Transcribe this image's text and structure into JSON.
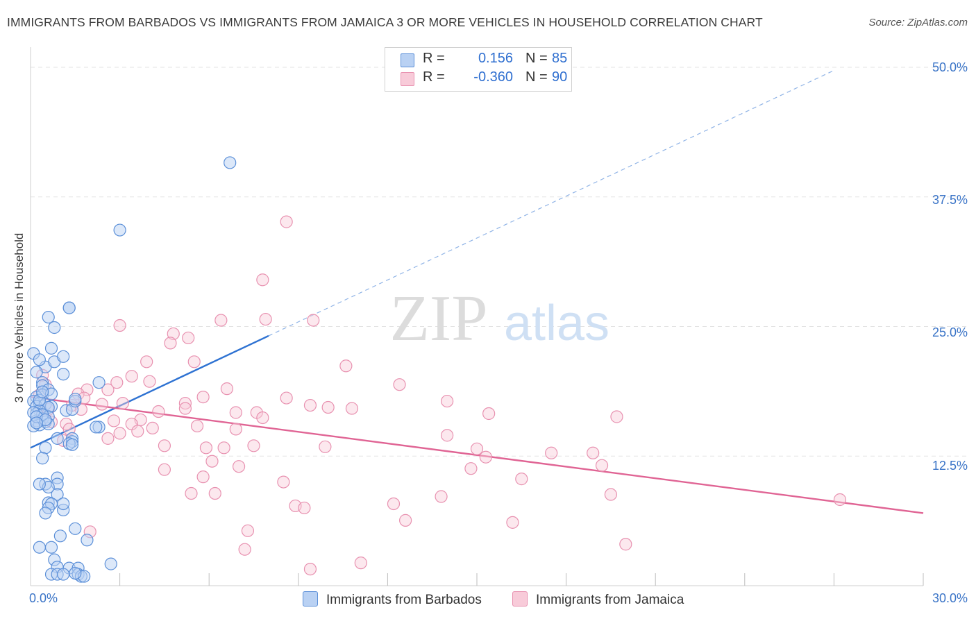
{
  "title": "IMMIGRANTS FROM BARBADOS VS IMMIGRANTS FROM JAMAICA 3 OR MORE VEHICLES IN HOUSEHOLD CORRELATION CHART",
  "source": "Source: ZipAtlas.com",
  "watermark": {
    "zip": "ZIP",
    "atlas": "atlas"
  },
  "legend": {
    "r_label": "R =",
    "n_label": "N =",
    "rows": [
      {
        "r": "0.156",
        "n": "85"
      },
      {
        "r": "-0.360",
        "n": "90"
      }
    ]
  },
  "colors": {
    "barbados_stroke": "#5b8fd8",
    "barbados_fill": "#b9d1f3",
    "barbados_line": "#2e72d2",
    "jamaica_stroke": "#e891b0",
    "jamaica_fill": "#f8cbd9",
    "jamaica_line": "#e06494",
    "grid": "#e3e3e3",
    "tick_text": "#3a74c7"
  },
  "chart_data": {
    "type": "scatter",
    "title": "IMMIGRANTS FROM BARBADOS VS IMMIGRANTS FROM JAMAICA 3 OR MORE VEHICLES IN HOUSEHOLD CORRELATION CHART",
    "xlabel": "",
    "ylabel": "3 or more Vehicles in Household",
    "xlim": [
      0,
      30
    ],
    "ylim": [
      0,
      50
    ],
    "x_tick_labels": [
      {
        "value": 0,
        "label": "0.0%"
      },
      {
        "value": 30,
        "label": "30.0%"
      }
    ],
    "y_tick_labels": [
      {
        "value": 12.5,
        "label": "12.5%"
      },
      {
        "value": 25,
        "label": "25.0%"
      },
      {
        "value": 37.5,
        "label": "37.5%"
      },
      {
        "value": 50,
        "label": "50.0%"
      }
    ],
    "x_minor_ticks": [
      3,
      6,
      9,
      12,
      15,
      18,
      21,
      24,
      27,
      30
    ],
    "grid": true,
    "series": [
      {
        "name": "Immigrants from Barbados",
        "r": 0.156,
        "n": 85,
        "trend": {
          "x0": 0,
          "y0": 13.3,
          "x1": 8,
          "y1": 24.1,
          "dashed_to_x": 27,
          "dashed_to_y": 49.7
        },
        "points": [
          [
            6.7,
            40.8
          ],
          [
            3.0,
            34.3
          ],
          [
            1.3,
            26.8
          ],
          [
            1.3,
            26.8
          ],
          [
            0.6,
            25.9
          ],
          [
            0.8,
            24.9
          ],
          [
            0.1,
            22.4
          ],
          [
            0.7,
            22.9
          ],
          [
            0.5,
            21.1
          ],
          [
            0.8,
            21.6
          ],
          [
            1.1,
            22.1
          ],
          [
            1.1,
            20.4
          ],
          [
            0.3,
            21.8
          ],
          [
            0.2,
            20.6
          ],
          [
            0.4,
            19.6
          ],
          [
            0.4,
            19.3
          ],
          [
            0.6,
            18.9
          ],
          [
            0.4,
            18.4
          ],
          [
            0.7,
            18.5
          ],
          [
            0.2,
            18.2
          ],
          [
            0.1,
            17.8
          ],
          [
            0.3,
            17.6
          ],
          [
            0.2,
            17.3
          ],
          [
            0.5,
            17.5
          ],
          [
            0.7,
            17.3
          ],
          [
            0.6,
            17.2
          ],
          [
            0.3,
            16.9
          ],
          [
            0.2,
            16.6
          ],
          [
            0.6,
            16.3
          ],
          [
            0.4,
            16.1
          ],
          [
            0.2,
            15.9
          ],
          [
            0.5,
            15.8
          ],
          [
            0.3,
            15.5
          ],
          [
            0.1,
            15.4
          ],
          [
            0.6,
            15.6
          ],
          [
            0.4,
            16.5
          ],
          [
            0.1,
            16.7
          ],
          [
            1.2,
            16.9
          ],
          [
            1.4,
            17.0
          ],
          [
            1.5,
            17.8
          ],
          [
            1.5,
            18.0
          ],
          [
            2.3,
            19.6
          ],
          [
            2.3,
            15.3
          ],
          [
            2.2,
            15.3
          ],
          [
            1.4,
            14.2
          ],
          [
            1.4,
            13.9
          ],
          [
            1.3,
            13.7
          ],
          [
            1.4,
            13.6
          ],
          [
            0.9,
            14.2
          ],
          [
            0.5,
            13.3
          ],
          [
            0.4,
            12.3
          ],
          [
            0.9,
            10.4
          ],
          [
            0.9,
            9.8
          ],
          [
            0.5,
            9.8
          ],
          [
            0.6,
            9.5
          ],
          [
            0.3,
            9.8
          ],
          [
            0.9,
            8.8
          ],
          [
            0.6,
            8.0
          ],
          [
            0.7,
            7.9
          ],
          [
            0.6,
            7.5
          ],
          [
            0.5,
            7.0
          ],
          [
            1.1,
            7.3
          ],
          [
            1.1,
            7.9
          ],
          [
            1.5,
            5.5
          ],
          [
            1.9,
            4.4
          ],
          [
            1.0,
            4.8
          ],
          [
            0.3,
            3.7
          ],
          [
            0.7,
            3.7
          ],
          [
            0.8,
            2.5
          ],
          [
            0.9,
            1.8
          ],
          [
            1.3,
            1.7
          ],
          [
            1.6,
            1.7
          ],
          [
            2.7,
            2.1
          ],
          [
            0.7,
            1.1
          ],
          [
            0.9,
            1.1
          ],
          [
            1.1,
            1.1
          ],
          [
            1.6,
            1.1
          ],
          [
            1.7,
            0.9
          ],
          [
            1.8,
            0.9
          ],
          [
            1.5,
            1.2
          ],
          [
            0.2,
            16.3
          ],
          [
            0.3,
            17.9
          ],
          [
            0.4,
            18.7
          ],
          [
            0.5,
            16.0
          ],
          [
            0.2,
            15.7
          ]
        ]
      },
      {
        "name": "Immigrants from Jamaica",
        "r": -0.36,
        "n": 90,
        "trend": {
          "x0": 0,
          "y0": 18.2,
          "x1": 30,
          "y1": 7.0
        },
        "points": [
          [
            8.6,
            35.1
          ],
          [
            7.8,
            29.5
          ],
          [
            3.0,
            25.1
          ],
          [
            6.4,
            25.6
          ],
          [
            7.9,
            25.7
          ],
          [
            9.5,
            25.6
          ],
          [
            4.8,
            24.3
          ],
          [
            5.3,
            23.9
          ],
          [
            4.7,
            23.4
          ],
          [
            10.6,
            21.2
          ],
          [
            12.4,
            19.4
          ],
          [
            5.5,
            21.6
          ],
          [
            3.9,
            21.6
          ],
          [
            3.4,
            20.2
          ],
          [
            4.0,
            19.7
          ],
          [
            2.9,
            19.6
          ],
          [
            2.6,
            18.9
          ],
          [
            1.9,
            18.9
          ],
          [
            1.6,
            18.5
          ],
          [
            1.8,
            18.1
          ],
          [
            1.4,
            17.4
          ],
          [
            1.7,
            17.0
          ],
          [
            2.4,
            17.5
          ],
          [
            3.1,
            17.6
          ],
          [
            5.2,
            17.6
          ],
          [
            5.8,
            18.2
          ],
          [
            6.6,
            19.0
          ],
          [
            8.6,
            18.1
          ],
          [
            9.4,
            17.4
          ],
          [
            10.0,
            17.2
          ],
          [
            10.8,
            17.1
          ],
          [
            14.0,
            17.8
          ],
          [
            15.4,
            16.6
          ],
          [
            19.7,
            16.3
          ],
          [
            4.3,
            16.8
          ],
          [
            5.2,
            17.1
          ],
          [
            6.9,
            16.7
          ],
          [
            7.6,
            16.7
          ],
          [
            7.8,
            16.2
          ],
          [
            3.7,
            16.0
          ],
          [
            3.4,
            15.6
          ],
          [
            2.8,
            15.9
          ],
          [
            3.6,
            14.9
          ],
          [
            4.1,
            15.2
          ],
          [
            5.6,
            15.4
          ],
          [
            6.9,
            15.1
          ],
          [
            1.2,
            15.6
          ],
          [
            1.3,
            15.1
          ],
          [
            1.1,
            14.0
          ],
          [
            2.6,
            14.2
          ],
          [
            3.0,
            14.7
          ],
          [
            4.5,
            13.5
          ],
          [
            5.9,
            13.3
          ],
          [
            6.5,
            13.3
          ],
          [
            7.5,
            13.5
          ],
          [
            9.9,
            13.4
          ],
          [
            14.0,
            14.5
          ],
          [
            15.0,
            13.2
          ],
          [
            15.3,
            12.4
          ],
          [
            17.5,
            12.8
          ],
          [
            18.9,
            12.8
          ],
          [
            19.2,
            11.6
          ],
          [
            14.8,
            11.3
          ],
          [
            6.1,
            12.0
          ],
          [
            7.0,
            11.5
          ],
          [
            4.5,
            11.2
          ],
          [
            5.8,
            10.5
          ],
          [
            8.5,
            10.0
          ],
          [
            16.5,
            10.3
          ],
          [
            5.4,
            8.9
          ],
          [
            6.2,
            8.9
          ],
          [
            8.9,
            7.7
          ],
          [
            9.2,
            7.5
          ],
          [
            12.2,
            7.9
          ],
          [
            13.8,
            8.6
          ],
          [
            19.5,
            8.8
          ],
          [
            27.2,
            8.3
          ],
          [
            12.6,
            6.3
          ],
          [
            16.2,
            6.1
          ],
          [
            7.3,
            5.3
          ],
          [
            2.0,
            5.2
          ],
          [
            20.0,
            4.0
          ],
          [
            7.2,
            3.5
          ],
          [
            9.4,
            1.6
          ],
          [
            11.1,
            2.2
          ],
          [
            0.5,
            19.4
          ],
          [
            0.3,
            18.4
          ],
          [
            0.6,
            17.0
          ],
          [
            0.7,
            15.8
          ],
          [
            0.4,
            20.3
          ]
        ]
      }
    ]
  }
}
